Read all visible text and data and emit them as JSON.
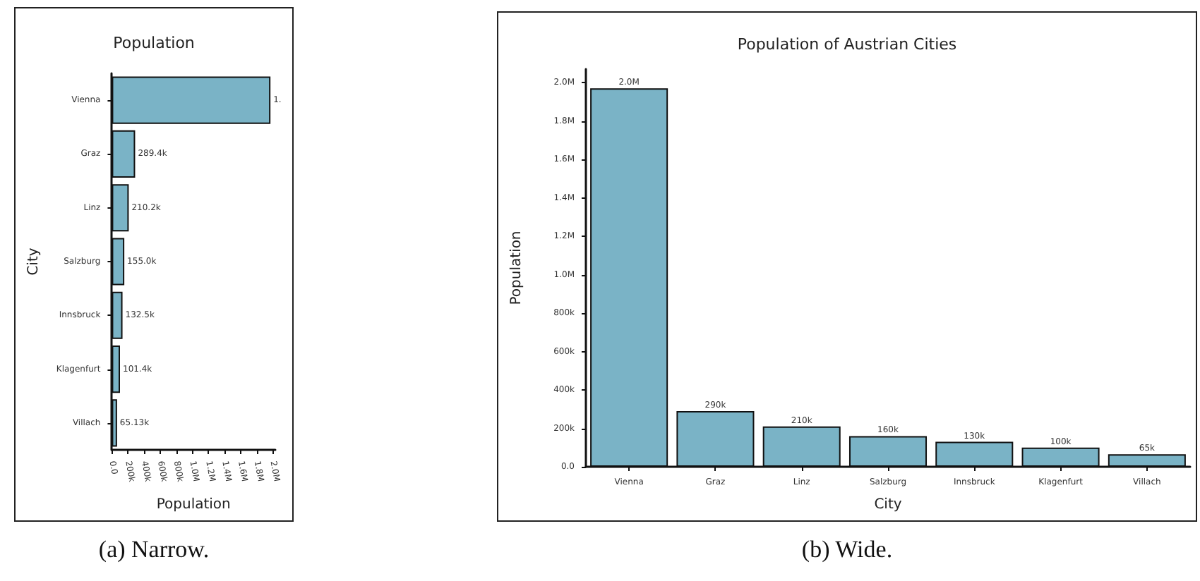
{
  "chart_data": [
    {
      "type": "bar",
      "orientation": "horizontal",
      "title": "Population",
      "xlabel": "Population",
      "ylabel": "City",
      "categories": [
        "Vienna",
        "Graz",
        "Linz",
        "Salzburg",
        "Innsbruck",
        "Klagenfurt",
        "Villach"
      ],
      "values": [
        1970000,
        289400,
        210200,
        155000,
        132500,
        101400,
        65130
      ],
      "value_labels": [
        null,
        "289.4k",
        "210.2k",
        "155.0k",
        "132.5k",
        "101.4k",
        "65.13k"
      ],
      "color": "#7ab3c6",
      "xlim": [
        0,
        2030000
      ],
      "xticks": [
        {
          "value": 0,
          "label": "0.0"
        },
        {
          "value": 200000,
          "label": "200k"
        },
        {
          "value": 400000,
          "label": "400k"
        },
        {
          "value": 600000,
          "label": "600k"
        },
        {
          "value": 800000,
          "label": "800k"
        },
        {
          "value": 1000000,
          "label": "1.0M"
        },
        {
          "value": 1200000,
          "label": "1.2M"
        },
        {
          "value": 1400000,
          "label": "1.4M"
        },
        {
          "value": 1600000,
          "label": "1.6M"
        },
        {
          "value": 1800000,
          "label": "1.8M"
        },
        {
          "value": 2000000,
          "label": "2.0M"
        }
      ],
      "grid": false,
      "annotations": [
        {
          "text": "1.",
          "x": 1970000,
          "y": "Vienna"
        },
        "(a) Narrow."
      ]
    },
    {
      "type": "bar",
      "title": "Population of Austrian Cities",
      "xlabel": "City",
      "ylabel": "Population",
      "categories": [
        "Vienna",
        "Graz",
        "Linz",
        "Salzburg",
        "Innsbruck",
        "Klagenfurt",
        "Villach"
      ],
      "values": [
        1970000,
        290000,
        210200,
        160000,
        130000,
        100000,
        65130
      ],
      "value_labels": [
        "2.0M",
        "290k",
        "210k",
        "160k",
        "130k",
        "100k",
        "65k"
      ],
      "color": "#7ab3c6",
      "ylim": [
        0,
        2070000
      ],
      "yticks": [
        {
          "value": 0,
          "label": "0.0"
        },
        {
          "value": 200000,
          "label": "200k"
        },
        {
          "value": 400000,
          "label": "400k"
        },
        {
          "value": 600000,
          "label": "600k"
        },
        {
          "value": 800000,
          "label": "800k"
        },
        {
          "value": 1000000,
          "label": "1.0M"
        },
        {
          "value": 1200000,
          "label": "1.2M"
        },
        {
          "value": 1400000,
          "label": "1.4M"
        },
        {
          "value": 1600000,
          "label": "1.6M"
        },
        {
          "value": 1800000,
          "label": "1.8M"
        },
        {
          "value": 2000000,
          "label": "2.0M"
        }
      ],
      "grid": false,
      "annotations": [
        "(b) Wide."
      ]
    }
  ]
}
